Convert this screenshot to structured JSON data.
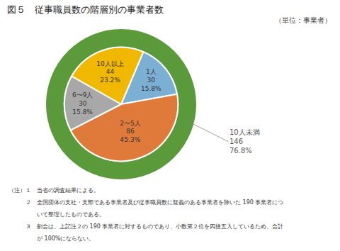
{
  "chart_data": {
    "type": "pie",
    "title": "図５　従事職員数の階層別の事業者数",
    "subtitle": "（単位：事業者）",
    "categories": [
      "1人",
      "2〜5人",
      "6〜9人",
      "10人以上"
    ],
    "values": [
      30,
      86,
      30,
      44
    ],
    "percents": [
      15.8,
      45.3,
      15.8,
      23.2
    ],
    "percent_labels": [
      "15.8%",
      "45.3%",
      "15.8%",
      "23.2%"
    ],
    "colors": [
      "#7bafd4",
      "#e07a3a",
      "#a8a8a8",
      "#f0b800"
    ],
    "outer": {
      "name": "10人未満",
      "value": 146,
      "percent": 76.8,
      "percent_label": "76.8%",
      "color": "#5a9a3a"
    },
    "notes": [
      "（注）１　当省の調査結果による。",
      "　　　２　全国団体の支社・支部である事業者及び従事職員数に疑義のある事業者を除いた 190 事業者につ",
      "　　　　　いて整理したものである。",
      "　　　３　割合は、上記注２の 190 事業者に対するものであり、小数第２位を四捨五入しているため、合計",
      "　　　　　が 100%にならない。"
    ],
    "background_color": "#ffffff"
  }
}
